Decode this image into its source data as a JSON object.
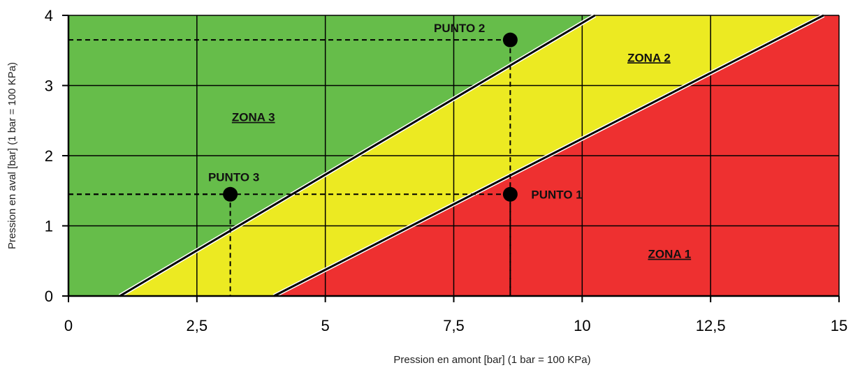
{
  "chart_data": {
    "type": "area",
    "xlabel": "Pression en amont [bar] (1 bar = 100 KPa)",
    "ylabel": "Pression en aval [bar] (1 bar = 100 KPa)",
    "xlim": [
      0,
      15
    ],
    "ylim": [
      0,
      4
    ],
    "x_ticks": [
      "0",
      "2,5",
      "5",
      "7,5",
      "10",
      "12,5",
      "15"
    ],
    "x_tick_values": [
      0,
      2.5,
      5,
      7.5,
      10,
      12.5,
      15
    ],
    "y_ticks": [
      "0",
      "1",
      "2",
      "3",
      "4"
    ],
    "y_tick_values": [
      0,
      1,
      2,
      3,
      4
    ],
    "grid": true,
    "boundary_lines": [
      {
        "x": [
          1.0,
          10.25
        ],
        "y": [
          0,
          4
        ]
      },
      {
        "x": [
          4.0,
          14.7
        ],
        "y": [
          0,
          4
        ]
      }
    ],
    "zones": [
      {
        "name": "ZONA 1",
        "color": "#ee3030",
        "label_x": 11.7,
        "label_y": 0.6
      },
      {
        "name": "ZONA 2",
        "color": "#ecea22",
        "label_x": 11.3,
        "label_y": 3.4
      },
      {
        "name": "ZONA 3",
        "color": "#66bd4a",
        "label_x": 3.6,
        "label_y": 2.55
      }
    ],
    "points": [
      {
        "name": "PUNTO 1",
        "x": 8.6,
        "y": 1.45,
        "label_position": "right"
      },
      {
        "name": "PUNTO 2",
        "x": 8.6,
        "y": 3.65,
        "label_position": "upper-left"
      },
      {
        "name": "PUNTO 3",
        "x": 3.15,
        "y": 1.45,
        "label_position": "above"
      }
    ]
  }
}
